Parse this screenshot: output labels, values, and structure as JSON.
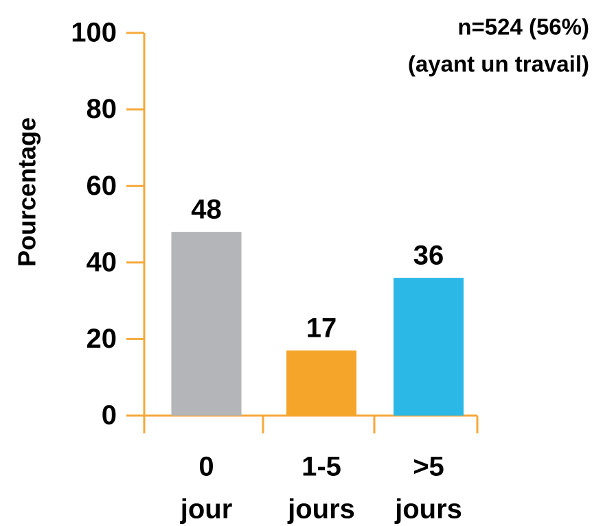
{
  "chart_data": {
    "type": "bar",
    "annotations": [
      "n=524 (56%)",
      "(ayant un travail)"
    ],
    "ylabel": "Pourcentage",
    "categories": [
      [
        "0",
        "jour"
      ],
      [
        "1-5",
        "jours"
      ],
      [
        ">5",
        "jours"
      ]
    ],
    "values": [
      48,
      17,
      36
    ],
    "colors": [
      "#b4b5b8",
      "#f5a52a",
      "#2bb8e6"
    ],
    "axis_color": "#f5a93a",
    "ylim": [
      0,
      100
    ],
    "yticks": [
      0,
      20,
      40,
      60,
      80,
      100
    ],
    "grid": false
  }
}
